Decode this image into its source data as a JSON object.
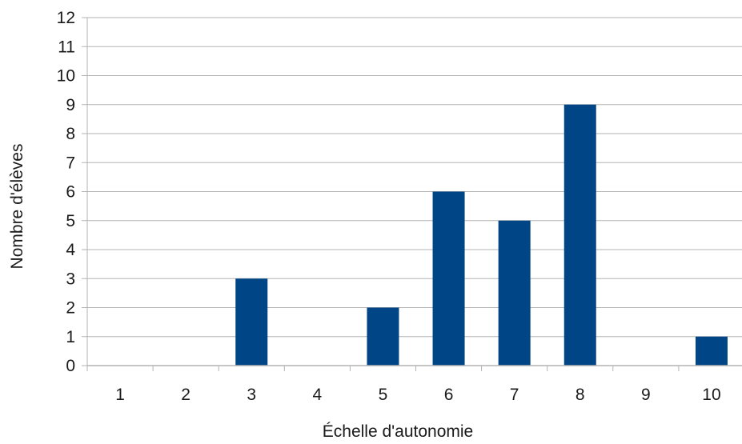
{
  "chart_data": {
    "type": "bar",
    "title": "",
    "xlabel": "Échelle d'autonomie",
    "ylabel": "Nombre d'élèves",
    "categories": [
      "1",
      "2",
      "3",
      "4",
      "5",
      "6",
      "7",
      "8",
      "9",
      "10"
    ],
    "values": [
      0,
      0,
      3,
      0,
      2,
      6,
      5,
      9,
      0,
      1
    ],
    "ylim": [
      0,
      12
    ],
    "yticks": [
      "0",
      "1",
      "2",
      "3",
      "4",
      "5",
      "6",
      "7",
      "8",
      "9",
      "10",
      "11",
      "12"
    ],
    "grid": true,
    "legend": "none",
    "colors": {
      "bar": "#004586",
      "grid": "#b3b3b3",
      "axis": "#b3b3b3",
      "text": "#1a1a1a"
    }
  }
}
